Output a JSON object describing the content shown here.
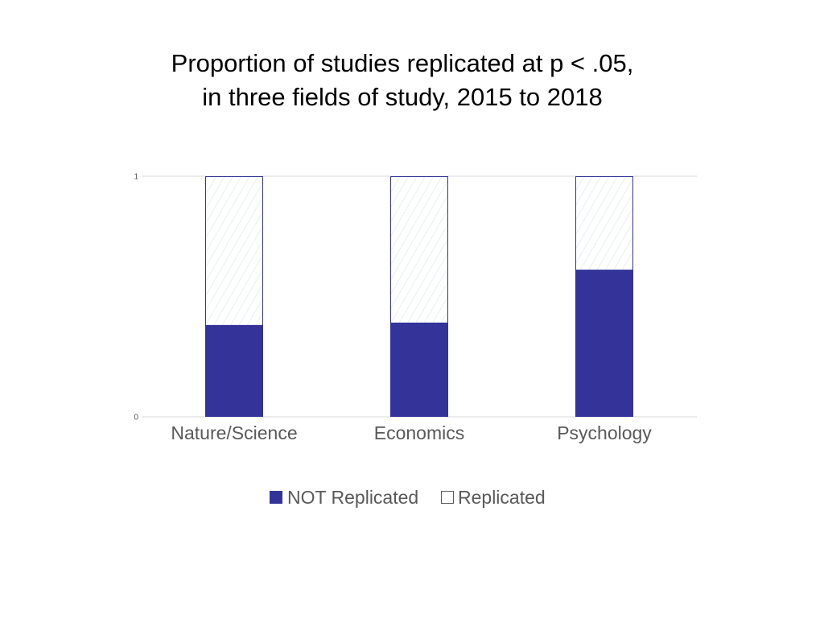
{
  "chart_data": {
    "type": "bar",
    "stacked": true,
    "title": [
      "Proportion of studies replicated at p < .05,",
      "in three fields of study, 2015 to 2018"
    ],
    "categories": [
      "Nature/Science",
      "Economics",
      "Psychology"
    ],
    "series": [
      {
        "name": "NOT Replicated",
        "values": [
          0.38,
          0.39,
          0.61
        ]
      },
      {
        "name": "Replicated",
        "values": [
          0.62,
          0.61,
          0.39
        ]
      }
    ],
    "y_ticks": [
      "0",
      "1"
    ],
    "ylim": [
      0,
      1
    ],
    "grid": true,
    "legend_position": "bottom",
    "colors": {
      "not_replicated": "#333399",
      "replicated_border": "#333399",
      "replicated_hatch": "#cfe3e6",
      "grid": "#d9d9d9"
    }
  }
}
